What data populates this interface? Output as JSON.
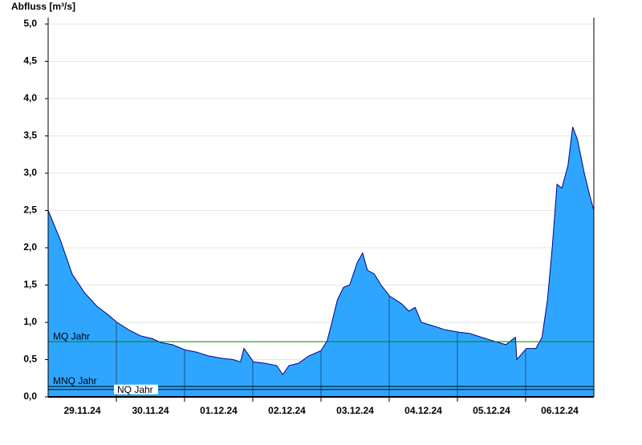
{
  "chart_data": {
    "type": "area",
    "y_label": "Abfluss [m³/s]",
    "x": [
      0,
      0.18,
      0.35,
      0.53,
      0.71,
      0.88,
      1.01,
      1.18,
      1.35,
      1.53,
      1.65,
      1.82,
      2.01,
      2.18,
      2.35,
      2.53,
      2.71,
      2.82,
      2.87,
      3.01,
      3.18,
      3.35,
      3.44,
      3.53,
      3.67,
      3.82,
      4.0,
      4.09,
      4.16,
      4.24,
      4.33,
      4.42,
      4.53,
      4.61,
      4.68,
      4.78,
      4.88,
      5.01,
      5.18,
      5.29,
      5.38,
      5.47,
      5.65,
      5.82,
      6.01,
      6.18,
      6.35,
      6.53,
      6.71,
      6.85,
      6.87,
      7.01,
      7.15,
      7.24,
      7.32,
      7.39,
      7.46,
      7.53,
      7.62,
      7.69,
      7.76,
      7.86,
      7.94,
      8.0
    ],
    "values": [
      2.5,
      2.1,
      1.65,
      1.4,
      1.22,
      1.1,
      1.0,
      0.9,
      0.82,
      0.78,
      0.73,
      0.7,
      0.63,
      0.6,
      0.55,
      0.52,
      0.5,
      0.47,
      0.65,
      0.47,
      0.45,
      0.42,
      0.3,
      0.42,
      0.45,
      0.55,
      0.62,
      0.75,
      1.0,
      1.3,
      1.47,
      1.5,
      1.8,
      1.93,
      1.7,
      1.65,
      1.5,
      1.35,
      1.25,
      1.15,
      1.2,
      1.0,
      0.95,
      0.9,
      0.87,
      0.85,
      0.8,
      0.75,
      0.7,
      0.8,
      0.5,
      0.65,
      0.65,
      0.8,
      1.3,
      2.0,
      2.85,
      2.8,
      3.1,
      3.62,
      3.45,
      3.0,
      2.7,
      2.5
    ],
    "color": "#2ea6ff",
    "line_color": "#00008b",
    "xlim": [
      0,
      8
    ],
    "xticks": [
      {
        "value": 0.5,
        "label": "29.11.24"
      },
      {
        "value": 1.5,
        "label": "30.11.24"
      },
      {
        "value": 2.5,
        "label": "01.12.24"
      },
      {
        "value": 3.5,
        "label": "02.12.24"
      },
      {
        "value": 4.5,
        "label": "03.12.24"
      },
      {
        "value": 5.5,
        "label": "04.12.24"
      },
      {
        "value": 6.5,
        "label": "05.12.24"
      },
      {
        "value": 7.5,
        "label": "06.12.24"
      }
    ],
    "ylim": [
      0,
      5
    ],
    "yticks": [
      {
        "value": 0,
        "label": "0,0"
      },
      {
        "value": 0.5,
        "label": "0,5"
      },
      {
        "value": 1,
        "label": "1,0"
      },
      {
        "value": 1.5,
        "label": "1,5"
      },
      {
        "value": 2,
        "label": "2,0"
      },
      {
        "value": 2.5,
        "label": "2,5"
      },
      {
        "value": 3,
        "label": "3,0"
      },
      {
        "value": 3.5,
        "label": "3,5"
      },
      {
        "value": 4,
        "label": "4,0"
      },
      {
        "value": 4.5,
        "label": "4,5"
      },
      {
        "value": 5,
        "label": "5,0"
      }
    ],
    "grid": true,
    "reference_lines": [
      {
        "label": "MQ Jahr",
        "value": 0.74,
        "color": "#008000"
      },
      {
        "label": "MNQ Jahr",
        "value": 0.14,
        "color": "#000000"
      },
      {
        "label": "NQ Jahr",
        "value": 0.1,
        "color": "#000000"
      }
    ]
  }
}
